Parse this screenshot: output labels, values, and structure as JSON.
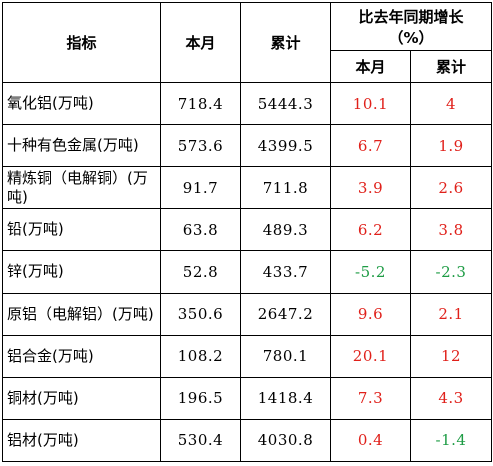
{
  "header": {
    "indicator": "指标",
    "this_month": "本月",
    "cumulative": "累计",
    "growth_title": "比去年同期增长",
    "growth_unit": "（%）",
    "growth_month": "本月",
    "growth_cumulative": "累计"
  },
  "colors": {
    "positive": "#e0201a",
    "negative": "#1e9c45"
  },
  "rows": [
    {
      "name": "氧化铝(万吨)",
      "month": "718.4",
      "cumulative": "5444.3",
      "growth_month": "10.1",
      "growth_cumulative": "4"
    },
    {
      "name": "十种有色金属(万吨)",
      "month": "573.6",
      "cumulative": "4399.5",
      "growth_month": "6.7",
      "growth_cumulative": "1.9"
    },
    {
      "name": "精炼铜（电解铜）(万吨)",
      "month": "91.7",
      "cumulative": "711.8",
      "growth_month": "3.9",
      "growth_cumulative": "2.6"
    },
    {
      "name": "铅(万吨)",
      "month": "63.8",
      "cumulative": "489.3",
      "growth_month": "6.2",
      "growth_cumulative": "3.8"
    },
    {
      "name": "锌(万吨)",
      "month": "52.8",
      "cumulative": "433.7",
      "growth_month": "-5.2",
      "growth_cumulative": "-2.3"
    },
    {
      "name": "原铝（电解铝）(万吨)",
      "month": "350.6",
      "cumulative": "2647.2",
      "growth_month": "9.6",
      "growth_cumulative": "2.1"
    },
    {
      "name": "铝合金(万吨)",
      "month": "108.2",
      "cumulative": "780.1",
      "growth_month": "20.1",
      "growth_cumulative": "12"
    },
    {
      "name": "铜材(万吨)",
      "month": "196.5",
      "cumulative": "1418.4",
      "growth_month": "7.3",
      "growth_cumulative": "4.3"
    },
    {
      "name": "铝材(万吨)",
      "month": "530.4",
      "cumulative": "4030.8",
      "growth_month": "0.4",
      "growth_cumulative": "-1.4"
    }
  ]
}
